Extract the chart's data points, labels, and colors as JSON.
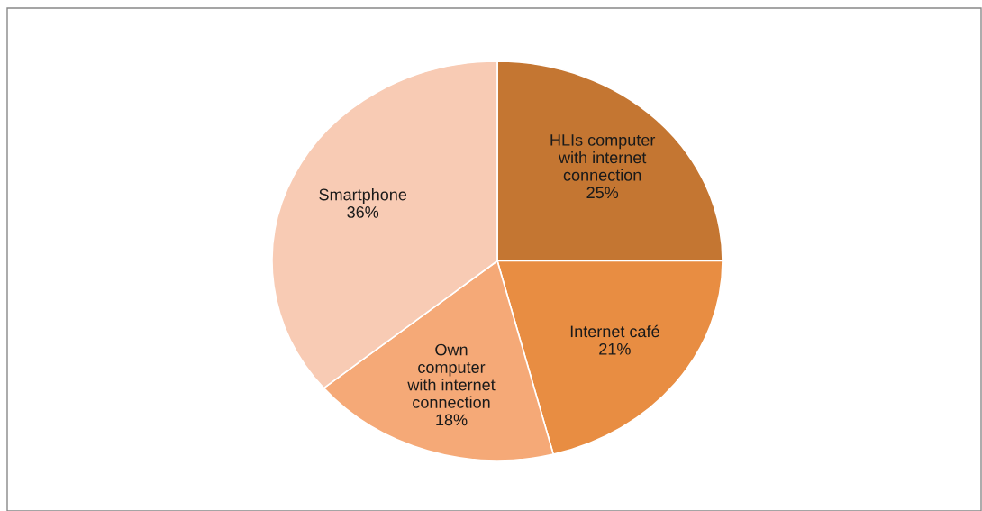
{
  "chart_data": {
    "type": "pie",
    "categories": [
      "HLIs computer\nwith internet\nconnection",
      "Internet café",
      "Own\ncomputer\nwith internet\nconnection",
      "Smartphone"
    ],
    "values": [
      25,
      21,
      18,
      36
    ],
    "colors": [
      "#c47632",
      "#e88d42",
      "#f5a977",
      "#f8cbb4"
    ],
    "value_labels": [
      "25%",
      "21%",
      "18%",
      "36%"
    ]
  }
}
